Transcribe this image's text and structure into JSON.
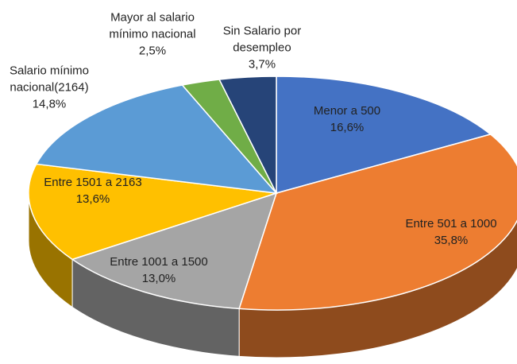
{
  "chart_data": {
    "type": "pie",
    "categories": [
      "Menor a 500",
      "Entre 501 a 1000",
      "Entre 1001 a 1500",
      "Entre 1501 a 2163",
      "Salario mínimo nacional(2164)",
      "Mayor al salario mínimo nacional",
      "Sin Salario por desempleo"
    ],
    "values": [
      16.6,
      35.8,
      13.0,
      13.6,
      14.8,
      2.5,
      3.7
    ],
    "value_labels": [
      "16,6%",
      "35,8%",
      "13,0%",
      "13,6%",
      "14,8%",
      "2,5%",
      "3,7%"
    ],
    "colors": [
      "#4472c4",
      "#ed7d31",
      "#a5a5a5",
      "#ffc000",
      "#5b9bd5",
      "#70ad47",
      "#264478"
    ]
  }
}
